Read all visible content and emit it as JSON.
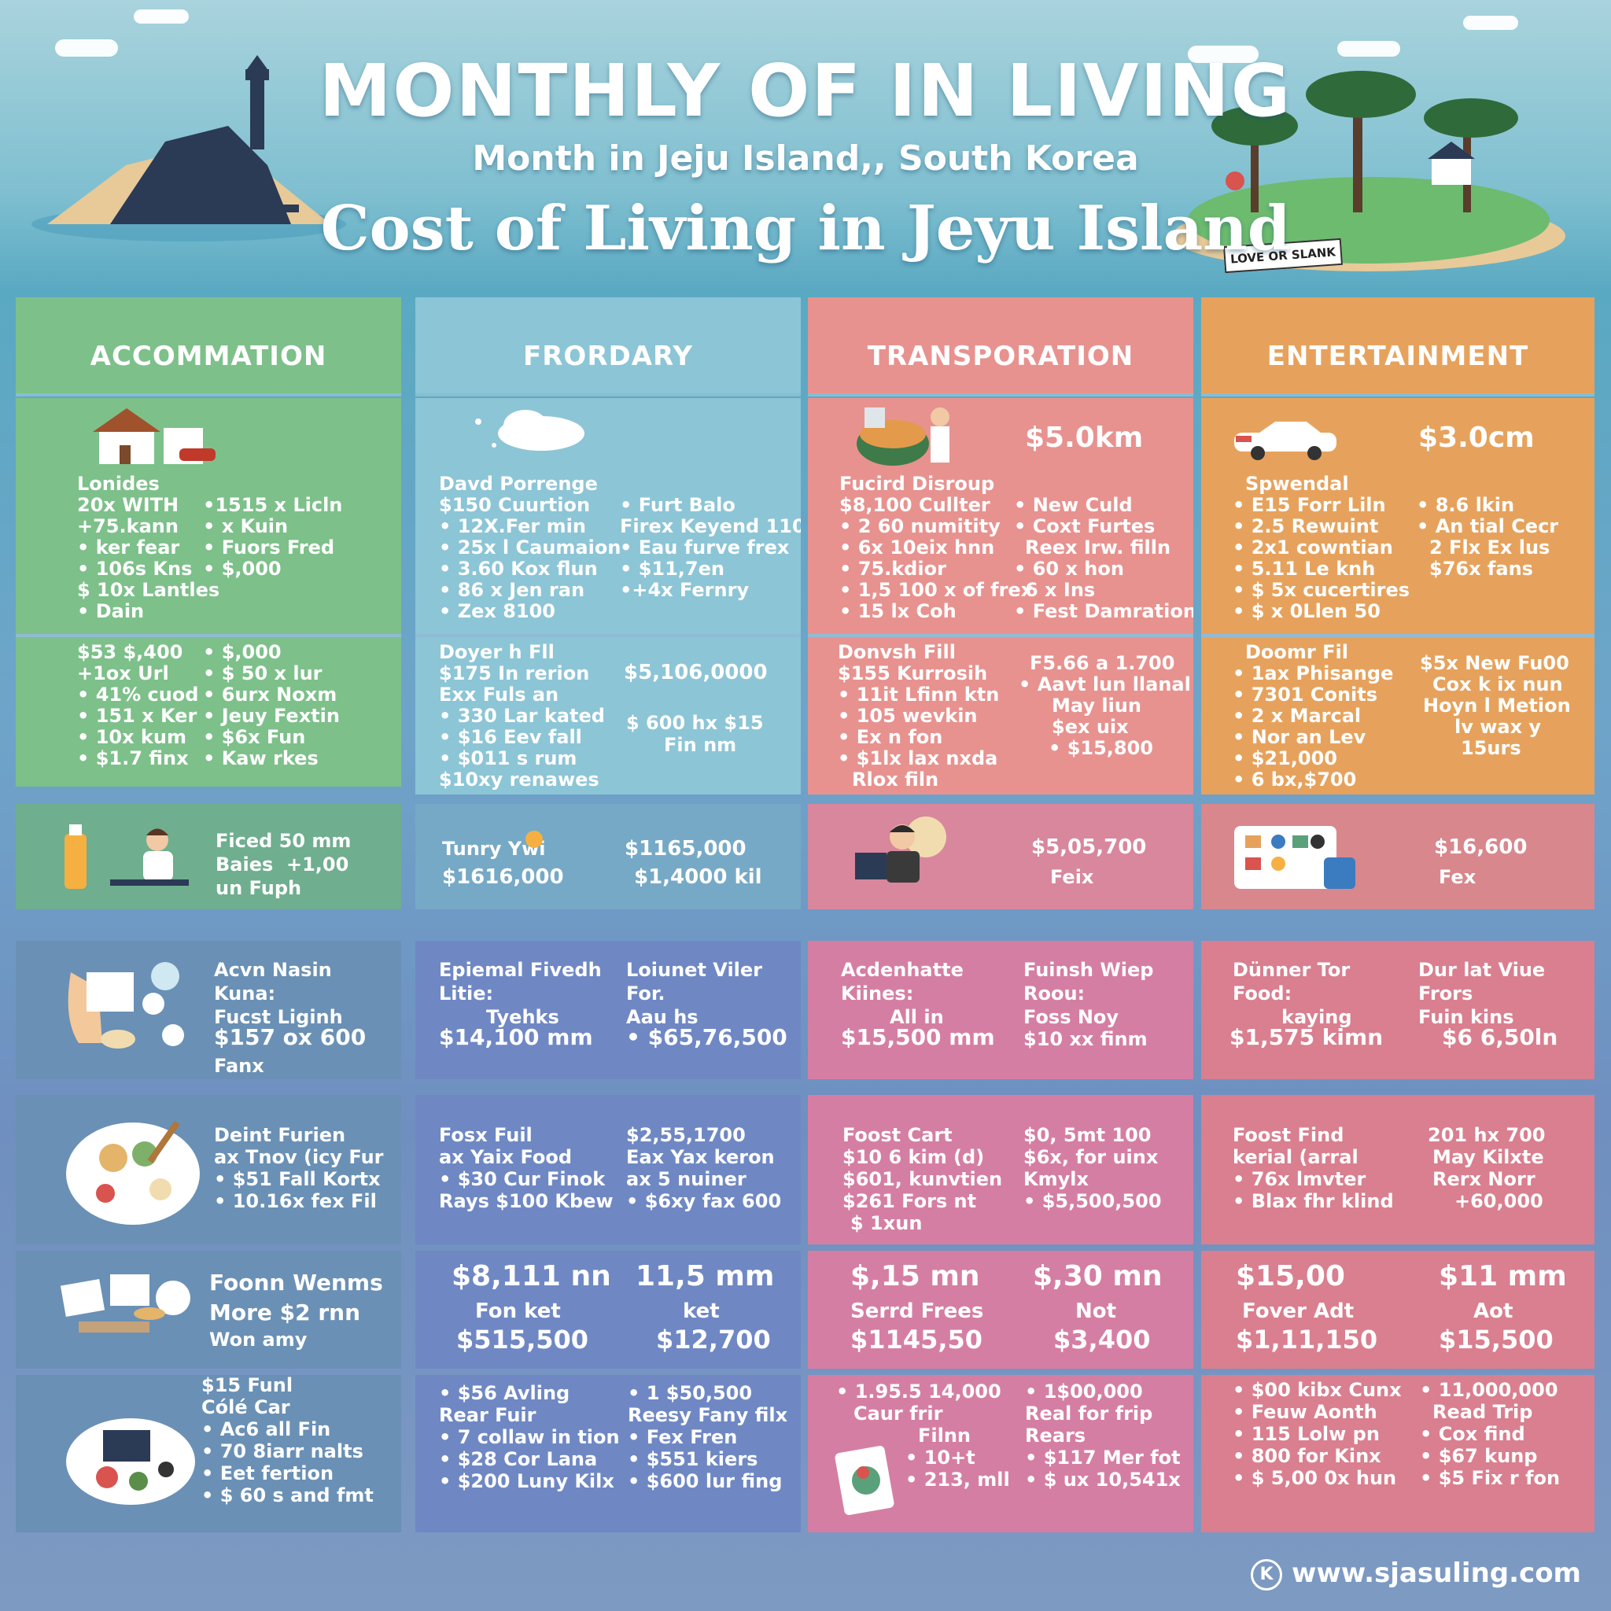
{
  "header": {
    "title": "MONTHLY OF IN LIVING",
    "subtitle": "Month in Jeju Island,, South Korea",
    "headline": "Cost of Living in  Jeyu Island",
    "sign": "LOVE OR SLANK"
  },
  "columns": [
    {
      "title": "ACCOMMATION",
      "color": "#7dc08a"
    },
    {
      "title": "FRORDARY",
      "color": "#8cc5d6"
    },
    {
      "title": "TRANSPORATION",
      "color": "#e7928f"
    },
    {
      "title": "ENTERTAINMENT",
      "color": "#e6a25c"
    }
  ],
  "acc": {
    "a_head": "Lonides",
    "a_left": [
      "20x WITH",
      "+75.kann",
      "• ker fear",
      "• 106s Kns",
      "$ 10x Lantles",
      "• Dain"
    ],
    "a_right": [
      "•1515 x Licln",
      "• x Kuin",
      "• Fuors Fred",
      "• $,000"
    ],
    "b_left": [
      "$53 $,400",
      "+1ox Url",
      "• 41% cuod",
      "• 151 x Ker",
      "• 10x kum",
      "• $1.7 finx"
    ],
    "b_right": [
      "• $,000",
      "• $ 50 x lur",
      "• 6urx Noxm",
      "• Jeuy Fextin",
      "• $6x Fun",
      "• Kaw rkes"
    ],
    "c_lines": [
      "Ficed 50 mm",
      "Baies  +1,00",
      "un Fuph"
    ],
    "d_lines": [
      "Acvn Nasin",
      "Kuna:",
      "Fucst Liginh",
      "$157 ox 600",
      "Fanx"
    ],
    "e_lines": [
      "Deint Furien",
      "ax Tnov (icy Fur",
      "• $51 Fall Kortx",
      "• 10.16x fex Fil"
    ],
    "f_lines": [
      "Foonn Wenms",
      "More $2 rnn",
      "Won amy"
    ],
    "g_lines": [
      "$15 Funl",
      "Cólé Car",
      "• Ac6 all Fin",
      "• 70 8iarr nalts",
      "• Eet fertion",
      "• $ 60 s and fmt"
    ]
  },
  "food": {
    "a_head": "Davd Porrenge",
    "a_left": [
      "$150 Cuurtion",
      "• 12X.Fer min",
      "• 25x l Caumaion",
      "• 3.60 Kox flun",
      "• 86 x Jen ran",
      "• Zex 8100"
    ],
    "a_right": [
      "• Furt Balo",
      "Firex Keyend 110",
      "• Eau furve frex",
      "• $11,7en",
      "•+4x Fernry"
    ],
    "b_left": [
      "Doyer h Fll",
      "$175 In rerion",
      "Exx Fuls an",
      "• 330 Lar kated",
      "• $16 Eev fall",
      "• $011 s rum",
      "$10xy renawes"
    ],
    "b_right1": "$5,106,0000",
    "b_right2": [
      "$ 600 hx $15",
      "Fin nm"
    ],
    "c_left": [
      "Tunry Ywi",
      "$1616,000"
    ],
    "c_right": [
      "$1165,000",
      "$1,4000 kil"
    ],
    "d_left": [
      "Epiemal Fivedh",
      "Litie:",
      "Tyehks",
      "$14,100 mm"
    ],
    "d_right": [
      "Loiunet Viler",
      "For.",
      "Aau hs",
      "• $65,76,500"
    ],
    "e_left": [
      "Fosx Fuil",
      "ax Yaix Food",
      "• $30 Cur Finok",
      "Rays $100 Kbew"
    ],
    "e_right": [
      "$2,55,1700",
      "Eax Yax keron",
      "ax 5 nuiner",
      "• $6xy fax 600"
    ],
    "f_left": [
      "$8,111 nn",
      "Fon ket",
      "$515,500"
    ],
    "f_right": [
      "11,5 mm",
      "ket",
      "$12,700"
    ],
    "g_left": [
      "• $56 Avling",
      "Rear Fuir",
      "• 7 collaw in tion",
      "• $28 Cor Lana",
      "• $200 Luny Kilx"
    ],
    "g_right": [
      "• 1 $50,500",
      "Reesy Fany filx",
      "• Fex Fren",
      "• $551 kiers",
      "• $600 lur fing"
    ]
  },
  "trans": {
    "price": "$5.0km",
    "a_head": "Fucird Disroup",
    "a_left": [
      "$8,100 Cullter",
      "• 2 60 numitity",
      "• 6x 10eix hnn",
      "• 75.kdior",
      "• 1,5 100 x of frex",
      "• 15 lx Coh"
    ],
    "a_right": [
      "• New Culd",
      "• Coxt Furtes",
      "Reex Irw. filln",
      "• 60 x hon",
      "6 x Ins",
      "• Fest Damration"
    ],
    "b_left": [
      "Donvsh Fill",
      "$155 Kurrosih",
      "• 11it Lfinn ktn",
      "• 105 wevkin",
      "• Ex n fon",
      "• $1lx lax nxda",
      "Rlox filn"
    ],
    "b_right": [
      "F5.66 a 1.700",
      "• Aavt lun llanal",
      "May liun",
      "$ex uix",
      "• $15,800"
    ],
    "c_right": [
      "$5,05,700",
      "Feix"
    ],
    "d_left": [
      "Acdenhatte",
      "Kiines:",
      "All in",
      "$15,500 mm"
    ],
    "d_right": [
      "Fuinsh Wiep",
      "Roou:",
      "Foss Noy",
      "$10 xx finm"
    ],
    "e_left": [
      "Foost Cart",
      "$10 6 kim (d)",
      "$601, kunvtien",
      "$261 Fors nt",
      "$ 1xun"
    ],
    "e_right": [
      "$0, 5mt 100",
      "$6x, for uinx",
      "Kmylx",
      "• $5,500,500"
    ],
    "f_left": [
      "$,15 mn",
      "Serrd Frees",
      "$1145,50"
    ],
    "f_right": [
      "$,30 mn",
      "Not",
      "$3,400"
    ],
    "g_left": [
      "• 1.95.5 14,000",
      "Caur frir",
      "Filnn",
      "• 10+t",
      "• 213, mll"
    ],
    "g_right": [
      "• 1$00,000",
      "Real for frip",
      "Rears",
      "• $117 Mer fot",
      "• $ ux 10,541x"
    ]
  },
  "ent": {
    "price": "$3.0cm",
    "a_head": "Spwendal",
    "a_left": [
      "• E15 Forr Liln",
      "• 2.5 Rewuint",
      "• 2x1 cowntian",
      "• 5.11 Le knh",
      "• $ 5x cucertires",
      "• $ x 0Llen 50"
    ],
    "a_right": [
      "• 8.6 lkin",
      "• An tial Cecr",
      "2 Flx Ex lus",
      "$76x fans"
    ],
    "b_left": [
      "Doomr Fil",
      "• 1ax Phisange",
      "• 7301 Conits",
      "• 2 x Marcal",
      "• Nor an Lev",
      "• $21,000",
      "• 6 bx,$700"
    ],
    "b_right": [
      "$5x New Fu00",
      "Cox k ix nun",
      "Hoyn l Metion",
      "lv wax y",
      "15urs"
    ],
    "c_right": [
      "$16,600",
      "Fex"
    ],
    "d_left": [
      "Dünner Tor",
      "Food:",
      "kaying",
      "$1,575 kimn"
    ],
    "d_right": [
      "Dur lat Viue",
      "Frors",
      "Fuin kins",
      "$6 6,50ln"
    ],
    "e_left": [
      "Foost Find",
      "kerial (arral",
      "• 76x lmvter",
      "• Blax fhr klind"
    ],
    "e_right": [
      "201 hx 700",
      "May Kilxte",
      "Rerx Norr",
      "+60,000"
    ],
    "f_left": [
      "$15,00",
      "Fover Adt",
      "$1,11,150"
    ],
    "f_right": [
      "$11 mm",
      "Aot",
      "$15,500"
    ],
    "g_left": [
      "• $00 kibx Cunx",
      "• Feuw Aonth",
      "• 115 Lolw pn",
      "• 800 for Kinx",
      "• $ 5,00 0x hun"
    ],
    "g_right": [
      "• 11,000,000",
      "Read Trip",
      "• Cox find",
      "• $67 kunp",
      "• $5 Fix r fon"
    ]
  },
  "footer": {
    "logo": "K",
    "url": "www.sjasuling.com"
  }
}
